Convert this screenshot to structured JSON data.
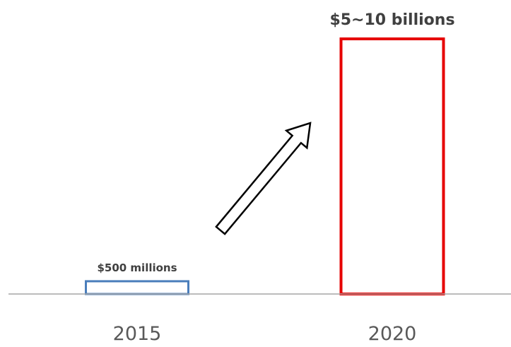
{
  "chart_data": {
    "type": "bar",
    "categories": [
      "2015",
      "2020"
    ],
    "values": [
      0.5,
      10
    ],
    "data_labels": [
      "$500 millions",
      "$5~10 billions"
    ],
    "title": "",
    "xlabel": "",
    "ylabel": "",
    "ylim": [
      0,
      10
    ],
    "grid": false,
    "legend": "none",
    "bar_fill": "none",
    "bar_colors": [
      "#4a7ebb",
      "#e60000"
    ],
    "axis_color": "#a6a6a6",
    "annotation": {
      "type": "arrow",
      "direction": "up-right",
      "fill": "#ffffff",
      "stroke": "#000000"
    }
  }
}
